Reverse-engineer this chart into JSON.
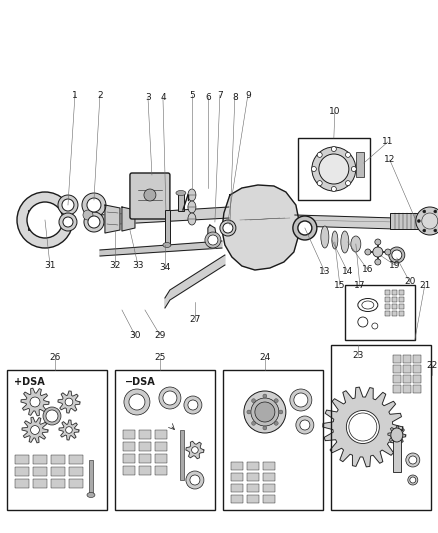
{
  "bg_color": "#ffffff",
  "fig_width": 4.39,
  "fig_height": 5.33,
  "dpi": 100
}
